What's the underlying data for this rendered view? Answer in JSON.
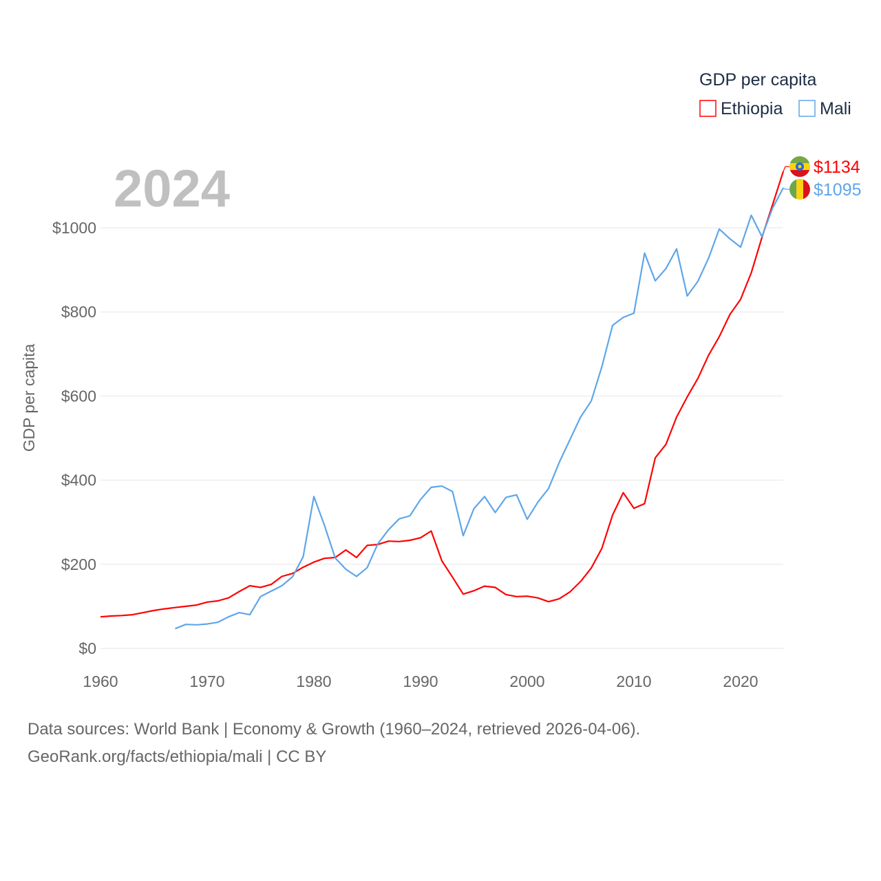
{
  "chart_data": {
    "type": "line",
    "title": "2024",
    "ylabel": "GDP per capita",
    "xlabel": "",
    "xlim": [
      1960,
      2024
    ],
    "ylim": [
      0,
      1150
    ],
    "x_ticks": [
      1960,
      1970,
      1980,
      1990,
      2000,
      2010,
      2020
    ],
    "x_tick_labels": [
      "1960",
      "1970",
      "1980",
      "1990",
      "2000",
      "2010",
      "2020"
    ],
    "y_ticks": [
      0,
      200,
      400,
      600,
      800,
      1000
    ],
    "y_tick_labels": [
      "$0",
      "$200",
      "$400",
      "$600",
      "$800",
      "$1000"
    ],
    "grid": true,
    "legend": {
      "title": "GDP per capita",
      "position": "top-right",
      "entries": [
        "Ethiopia",
        "Mali"
      ]
    },
    "series": [
      {
        "name": "Ethiopia",
        "color": "#ff0000",
        "start_year": 1960,
        "end_label": "$1134",
        "values": [
          75,
          77,
          78,
          80,
          85,
          90,
          94,
          97,
          100,
          103,
          110,
          113,
          120,
          135,
          149,
          145,
          152,
          171,
          178,
          193,
          205,
          214,
          216,
          234,
          216,
          245,
          247,
          255,
          254,
          257,
          263,
          279,
          208,
          169,
          129,
          137,
          148,
          145,
          128,
          123,
          124,
          120,
          111,
          118,
          134,
          159,
          191,
          238,
          317,
          370,
          333,
          344,
          453,
          485,
          550,
          598,
          642,
          697,
          741,
          794,
          830,
          893,
          977,
          1055,
          1134
        ]
      },
      {
        "name": "Mali",
        "color": "#5ea6ea",
        "start_year": 1967,
        "end_label": "$1095",
        "values": [
          47,
          57,
          56,
          58,
          62,
          75,
          85,
          80,
          123,
          136,
          149,
          170,
          218,
          361,
          292,
          215,
          188,
          171,
          192,
          249,
          282,
          308,
          315,
          354,
          383,
          386,
          373,
          268,
          332,
          361,
          323,
          359,
          365,
          307,
          348,
          380,
          442,
          496,
          550,
          588,
          670,
          768,
          787,
          797,
          940,
          874,
          903,
          950,
          838,
          873,
          928,
          997,
          974,
          954,
          1030,
          979,
          1047,
          1095
        ]
      }
    ]
  },
  "footer": {
    "line1": "Data sources: World Bank | Economy & Growth (1960–2024, retrieved 2026-04-06).",
    "line2": "GeoRank.org/facts/ethiopia/mali | CC BY"
  }
}
